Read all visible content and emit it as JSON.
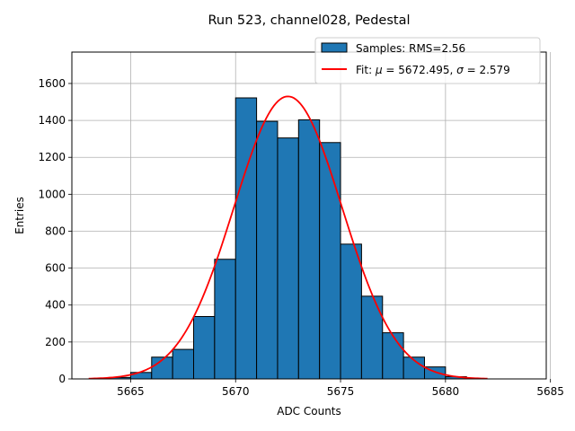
{
  "chart_data": {
    "type": "bar",
    "title": "Run 523, channel028, Pedestal",
    "xlabel": "ADC Counts",
    "ylabel": "Entries",
    "xlim": [
      5662.2,
      5684.8
    ],
    "ylim": [
      0,
      1770
    ],
    "xticks": [
      5665,
      5670,
      5675,
      5680,
      5685
    ],
    "yticks": [
      0,
      200,
      400,
      600,
      800,
      1000,
      1200,
      1400,
      1600
    ],
    "grid": true,
    "legend_position": "top-right",
    "histogram": {
      "name": "Samples: RMS=2.56",
      "color": "#1f77b4",
      "bin_width": 1,
      "bins": [
        {
          "left": 5664,
          "count": 8
        },
        {
          "left": 5665,
          "count": 35
        },
        {
          "left": 5666,
          "count": 118
        },
        {
          "left": 5667,
          "count": 160
        },
        {
          "left": 5668,
          "count": 338
        },
        {
          "left": 5669,
          "count": 648
        },
        {
          "left": 5670,
          "count": 1522
        },
        {
          "left": 5671,
          "count": 1395
        },
        {
          "left": 5672,
          "count": 1305
        },
        {
          "left": 5673,
          "count": 1403
        },
        {
          "left": 5674,
          "count": 1280
        },
        {
          "left": 5675,
          "count": 730
        },
        {
          "left": 5676,
          "count": 448
        },
        {
          "left": 5677,
          "count": 250
        },
        {
          "left": 5678,
          "count": 118
        },
        {
          "left": 5679,
          "count": 65
        },
        {
          "left": 5680,
          "count": 12
        }
      ]
    },
    "fit": {
      "name_prefix": "Fit: ",
      "mu_symbol": "μ",
      "mu_text": " = 5672.495, ",
      "sigma_symbol": "σ",
      "sigma_text": " = 2.579",
      "color": "#ff0000",
      "mu": 5672.495,
      "sigma": 2.579,
      "amplitude": 1530,
      "x_range": [
        5663,
        5682
      ]
    }
  }
}
